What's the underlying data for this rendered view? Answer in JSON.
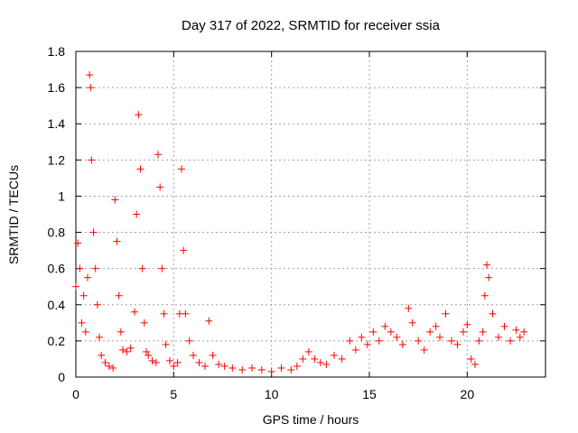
{
  "chart_data": {
    "type": "scatter",
    "title": "Day 317 of 2022, SRMTID for receiver ssia",
    "xlabel": "GPS time / hours",
    "ylabel": "SRMTID / TECUs",
    "xlim": [
      0,
      24
    ],
    "ylim": [
      0,
      1.8
    ],
    "xticks": [
      0,
      5,
      10,
      15,
      20
    ],
    "xtick_labels": [
      "0",
      "5",
      "10",
      "15",
      "20"
    ],
    "yticks": [
      0,
      0.2,
      0.4,
      0.6,
      0.8,
      1.0,
      1.2,
      1.4,
      1.6,
      1.8
    ],
    "ytick_labels": [
      "0",
      "0.2",
      "0.4",
      "0.6",
      "0.8",
      "1",
      "1.2",
      "1.4",
      "1.6",
      "1.8"
    ],
    "grid": true,
    "marker": "+",
    "series": [
      {
        "name": "SRMTID",
        "color": "#ff0000",
        "x": [
          0.0,
          0.1,
          0.2,
          0.3,
          0.4,
          0.5,
          0.6,
          0.7,
          0.75,
          0.8,
          0.9,
          1.0,
          1.1,
          1.2,
          1.3,
          1.5,
          1.7,
          1.9,
          2.0,
          2.1,
          2.2,
          2.3,
          2.4,
          2.6,
          2.8,
          3.0,
          3.1,
          3.2,
          3.3,
          3.4,
          3.5,
          3.6,
          3.7,
          3.9,
          4.1,
          4.2,
          4.3,
          4.4,
          4.5,
          4.6,
          4.8,
          5.0,
          5.2,
          5.3,
          5.4,
          5.5,
          5.6,
          5.8,
          6.0,
          6.3,
          6.6,
          6.8,
          7.0,
          7.3,
          7.6,
          8.0,
          8.5,
          9.0,
          9.5,
          10.0,
          10.5,
          11.0,
          11.3,
          11.6,
          11.9,
          12.2,
          12.5,
          12.8,
          13.2,
          13.6,
          14.0,
          14.3,
          14.6,
          14.9,
          15.2,
          15.5,
          15.8,
          16.1,
          16.4,
          16.7,
          17.0,
          17.2,
          17.5,
          17.8,
          18.1,
          18.4,
          18.6,
          18.9,
          19.2,
          19.5,
          19.8,
          20.0,
          20.2,
          20.4,
          20.6,
          20.8,
          20.9,
          21.0,
          21.1,
          21.3,
          21.6,
          21.9,
          22.2,
          22.5,
          22.7,
          22.9
        ],
        "y": [
          0.5,
          0.74,
          0.6,
          0.3,
          0.45,
          0.25,
          0.55,
          1.67,
          1.6,
          1.2,
          0.8,
          0.6,
          0.4,
          0.22,
          0.12,
          0.08,
          0.06,
          0.05,
          0.98,
          0.75,
          0.45,
          0.25,
          0.15,
          0.14,
          0.16,
          0.36,
          0.9,
          1.45,
          1.15,
          0.6,
          0.3,
          0.14,
          0.12,
          0.09,
          0.08,
          1.23,
          1.05,
          0.6,
          0.35,
          0.18,
          0.09,
          0.06,
          0.08,
          0.35,
          1.15,
          0.7,
          0.35,
          0.2,
          0.12,
          0.08,
          0.06,
          0.31,
          0.12,
          0.07,
          0.06,
          0.05,
          0.04,
          0.05,
          0.04,
          0.03,
          0.05,
          0.04,
          0.06,
          0.1,
          0.14,
          0.1,
          0.08,
          0.07,
          0.12,
          0.1,
          0.2,
          0.15,
          0.22,
          0.18,
          0.25,
          0.2,
          0.28,
          0.25,
          0.22,
          0.18,
          0.38,
          0.3,
          0.2,
          0.15,
          0.25,
          0.28,
          0.22,
          0.35,
          0.2,
          0.18,
          0.25,
          0.29,
          0.1,
          0.07,
          0.2,
          0.25,
          0.45,
          0.62,
          0.55,
          0.35,
          0.22,
          0.28,
          0.2,
          0.26,
          0.22,
          0.25
        ]
      }
    ]
  }
}
